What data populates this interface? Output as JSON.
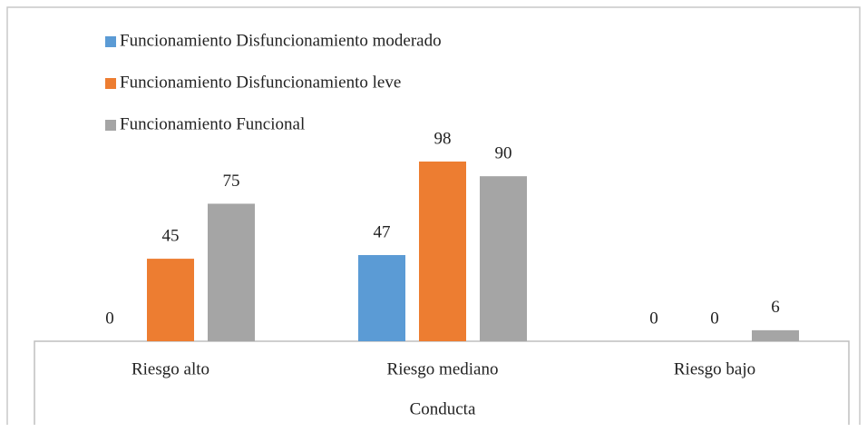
{
  "chart_data": {
    "type": "bar",
    "x_label": "Conducta",
    "categories": [
      "Riesgo alto",
      "Riesgo mediano",
      "Riesgo bajo"
    ],
    "series": [
      {
        "name": "Funcionamiento Disfuncionamiento moderado",
        "color": "#5b9bd5",
        "values": [
          0,
          47,
          0
        ]
      },
      {
        "name": "Funcionamiento Disfuncionamiento leve",
        "color": "#ed7d31",
        "values": [
          45,
          98,
          0
        ]
      },
      {
        "name": "Funcionamiento Funcional",
        "color": "#a5a5a5",
        "values": [
          75,
          90,
          6
        ]
      }
    ],
    "legend": "top-left"
  }
}
